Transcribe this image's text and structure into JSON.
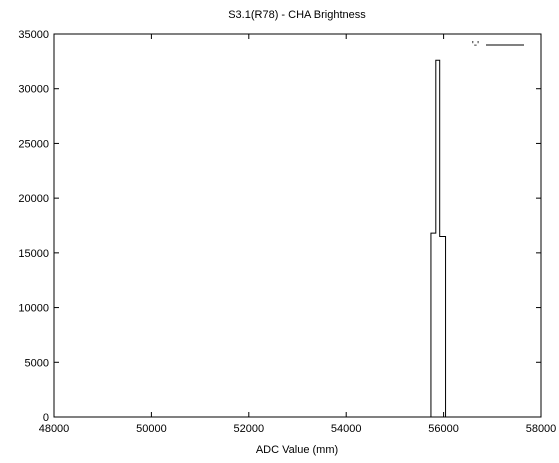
{
  "chart_data": {
    "type": "line",
    "title": "S3.1(R78) - CHA Brightness",
    "xlabel": "ADC Value (mm)",
    "ylabel": "",
    "xlim": [
      48000,
      58000
    ],
    "ylim": [
      0,
      35000
    ],
    "xticks": [
      48000,
      50000,
      52000,
      54000,
      56000,
      58000
    ],
    "yticks": [
      0,
      5000,
      10000,
      15000,
      20000,
      25000,
      30000,
      35000
    ],
    "grid": false,
    "legend_position": "top-right",
    "series": [
      {
        "name": "'-'",
        "color": "#000000",
        "style": "steps",
        "x": [
          48000,
          55740,
          55740,
          55840,
          55840,
          55920,
          55920,
          56040,
          56040,
          58000
        ],
        "y": [
          0,
          0,
          16800,
          16800,
          32600,
          32600,
          16500,
          16500,
          0,
          0
        ]
      }
    ]
  }
}
